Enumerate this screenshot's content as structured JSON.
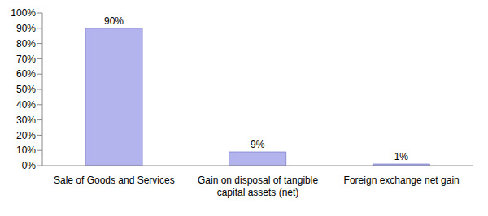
{
  "chart_data": {
    "type": "bar",
    "categories": [
      "Sale of Goods and Services",
      "Gain on disposal of tangible capital assets (net)",
      "Foreign exchange net gain"
    ],
    "values": [
      90,
      9,
      1
    ],
    "value_labels": [
      "90%",
      "9%",
      "1%"
    ],
    "color": "#b3b3ee",
    "ylim": [
      0,
      100
    ],
    "yticks": [
      {
        "value": 0,
        "label": "0%"
      },
      {
        "value": 10,
        "label": "10%"
      },
      {
        "value": 20,
        "label": "20%"
      },
      {
        "value": 30,
        "label": "30%"
      },
      {
        "value": 40,
        "label": "40%"
      },
      {
        "value": 50,
        "label": "50%"
      },
      {
        "value": 60,
        "label": "60%"
      },
      {
        "value": 70,
        "label": "70%"
      },
      {
        "value": 80,
        "label": "80%"
      },
      {
        "value": 90,
        "label": "90%"
      },
      {
        "value": 100,
        "label": "100%"
      }
    ],
    "grid": false,
    "data_labels": true
  }
}
